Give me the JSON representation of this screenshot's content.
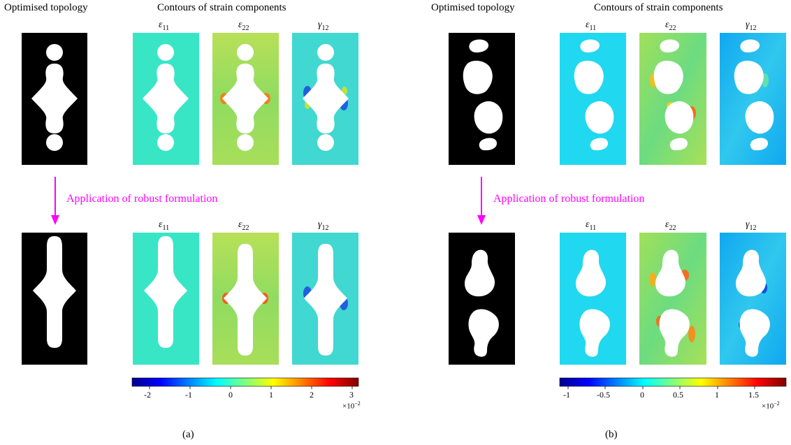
{
  "panel_a": {
    "header_topology": "Optimised topology",
    "header_contours": "Contours of strain components",
    "label_e11": "ε",
    "sub_11": "11",
    "label_e22": "ε",
    "sub_22": "22",
    "label_g12": "γ",
    "sub_12": "12",
    "arrow_text": "Application of robust formulation",
    "colorbar_ticks": [
      "-2",
      "-1",
      "0",
      "1",
      "2",
      "3"
    ],
    "multiplier_base": "×10",
    "multiplier_exp": "−2",
    "caption": "(a)"
  },
  "panel_b": {
    "header_topology": "Optimised topology",
    "header_contours": "Contours of strain components",
    "label_e11": "ε",
    "sub_11": "11",
    "label_e22": "ε",
    "sub_22": "22",
    "label_g12": "γ",
    "sub_12": "12",
    "arrow_text": "Application of robust formulation",
    "colorbar_ticks": [
      "-1",
      "-0.5",
      "0",
      "0.5",
      "1",
      "1.5"
    ],
    "multiplier_base": "×10",
    "multiplier_exp": "−2",
    "caption": "(b)"
  },
  "colors": {
    "arrow": "#ff00ff",
    "topology_bg": "#000000",
    "hole": "#ffffff",
    "e11_a": "#38e6c6",
    "e22_a": "#9cdc5a",
    "g12_a": "#40d8d0",
    "e11_b": "#20d8f0",
    "e22_b": "#80e070",
    "g12_b": "#20b8f0"
  }
}
